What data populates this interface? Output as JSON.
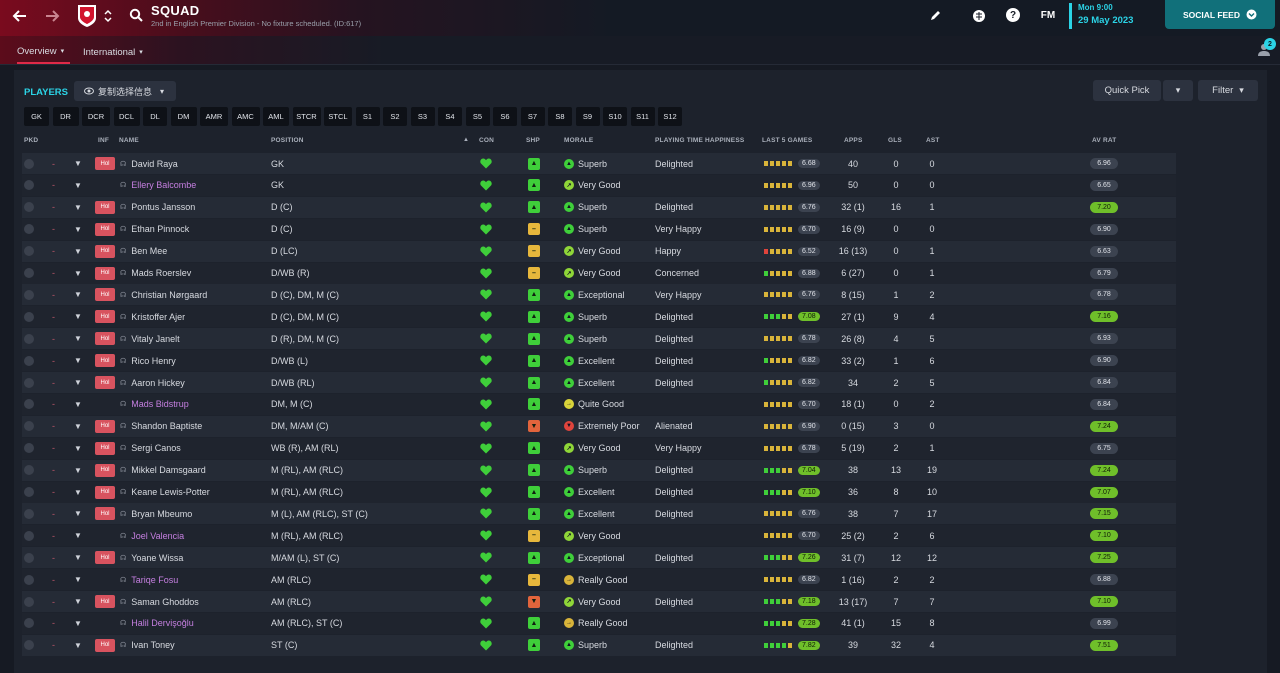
{
  "header": {
    "title": "SQUAD",
    "subtitle": "2nd in English Premier Division - No fixture scheduled. (ID:617)",
    "date_day": "Mon 9:00",
    "date": "29 May 2023",
    "social_feed": "SOCIAL FEED",
    "fm_label": "FM",
    "notification_count": "2"
  },
  "tabs": [
    {
      "label": "Overview",
      "active": true
    },
    {
      "label": "International",
      "active": false
    }
  ],
  "toolbar": {
    "players_label": "PLAYERS",
    "copy_label": "复制选择信息",
    "quick_pick": "Quick Pick",
    "filter": "Filter"
  },
  "positions": [
    "GK",
    "DR",
    "DCR",
    "DCL",
    "DL",
    "DM",
    "AMR",
    "AMC",
    "AML",
    "STCR",
    "STCL",
    "S1",
    "S2",
    "S3",
    "S4",
    "S5",
    "S6",
    "S7",
    "S8",
    "S9",
    "S10",
    "S11",
    "S12"
  ],
  "columns": {
    "pkd": "PKD",
    "inf": "INF",
    "name": "NAME",
    "position": "POSITION",
    "con": "CON",
    "shp": "SHP",
    "morale": "MORALE",
    "pth": "PLAYING TIME HAPPINESS",
    "last5": "LAST 5 GAMES",
    "apps": "APPS",
    "gls": "GLS",
    "ast": "AST",
    "avrat": "AV RAT"
  },
  "colors": {
    "accent": "#2bd3e6",
    "brand": "#c8102e",
    "green": "#6fbf2a",
    "loan": "#c57fe0"
  },
  "players": [
    {
      "name": "David Raya",
      "inf": "Hol",
      "position": "GK",
      "shp": "up",
      "morale": "Superb",
      "pth": "Delighted",
      "l5": [
        "y",
        "y",
        "y",
        "y",
        "y"
      ],
      "l5r": "6.68",
      "l5g": false,
      "apps": "40",
      "gls": "0",
      "ast": "0",
      "avr": "6.96",
      "avg": false,
      "loan": false
    },
    {
      "name": "Ellery Balcombe",
      "inf": "",
      "position": "GK",
      "shp": "up",
      "morale": "Very Good",
      "pth": "",
      "l5": [
        "y",
        "y",
        "y",
        "y",
        "y"
      ],
      "l5r": "6.96",
      "l5g": false,
      "apps": "50",
      "gls": "0",
      "ast": "0",
      "avr": "6.65",
      "avg": false,
      "loan": true
    },
    {
      "name": "Pontus Jansson",
      "inf": "Hol",
      "position": "D (C)",
      "shp": "up",
      "morale": "Superb",
      "pth": "Delighted",
      "l5": [
        "y",
        "y",
        "y",
        "y",
        "y"
      ],
      "l5r": "6.76",
      "l5g": false,
      "apps": "32 (1)",
      "gls": "16",
      "ast": "1",
      "avr": "7.20",
      "avg": true,
      "loan": false
    },
    {
      "name": "Ethan Pinnock",
      "inf": "Hol",
      "position": "D (C)",
      "shp": "mid",
      "morale": "Superb",
      "pth": "Very Happy",
      "l5": [
        "y",
        "y",
        "y",
        "y",
        "y"
      ],
      "l5r": "6.70",
      "l5g": false,
      "apps": "16 (9)",
      "gls": "0",
      "ast": "0",
      "avr": "6.90",
      "avg": false,
      "loan": false
    },
    {
      "name": "Ben Mee",
      "inf": "Hol",
      "position": "D (LC)",
      "shp": "mid",
      "morale": "Very Good",
      "pth": "Happy",
      "l5": [
        "r",
        "y",
        "y",
        "y",
        "y"
      ],
      "l5r": "6.52",
      "l5g": false,
      "apps": "16 (13)",
      "gls": "0",
      "ast": "1",
      "avr": "6.63",
      "avg": false,
      "loan": false
    },
    {
      "name": "Mads Roerslev",
      "inf": "Hol",
      "position": "D/WB (R)",
      "shp": "mid",
      "morale": "Very Good",
      "pth": "Concerned",
      "l5": [
        "g",
        "y",
        "y",
        "y",
        "y"
      ],
      "l5r": "6.88",
      "l5g": false,
      "apps": "6 (27)",
      "gls": "0",
      "ast": "1",
      "avr": "6.79",
      "avg": false,
      "loan": false
    },
    {
      "name": "Christian Nørgaard",
      "inf": "Hol",
      "position": "D (C), DM, M (C)",
      "shp": "up",
      "morale": "Exceptional",
      "pth": "Very Happy",
      "l5": [
        "y",
        "y",
        "y",
        "y",
        "y"
      ],
      "l5r": "6.76",
      "l5g": false,
      "apps": "8 (15)",
      "gls": "1",
      "ast": "2",
      "avr": "6.78",
      "avg": false,
      "loan": false
    },
    {
      "name": "Kristoffer Ajer",
      "inf": "Hol",
      "position": "D (C), DM, M (C)",
      "shp": "up",
      "morale": "Superb",
      "pth": "Delighted",
      "l5": [
        "g",
        "g",
        "g",
        "y",
        "y"
      ],
      "l5r": "7.08",
      "l5g": true,
      "apps": "27 (1)",
      "gls": "9",
      "ast": "4",
      "avr": "7.16",
      "avg": true,
      "loan": false
    },
    {
      "name": "Vitaly Janelt",
      "inf": "Hol",
      "position": "D (R), DM, M (C)",
      "shp": "up",
      "morale": "Superb",
      "pth": "Delighted",
      "l5": [
        "y",
        "y",
        "y",
        "y",
        "y"
      ],
      "l5r": "6.78",
      "l5g": false,
      "apps": "26 (8)",
      "gls": "4",
      "ast": "5",
      "avr": "6.93",
      "avg": false,
      "loan": false
    },
    {
      "name": "Rico Henry",
      "inf": "Hol",
      "position": "D/WB (L)",
      "shp": "up",
      "morale": "Excellent",
      "pth": "Delighted",
      "l5": [
        "g",
        "y",
        "y",
        "y",
        "y"
      ],
      "l5r": "6.82",
      "l5g": false,
      "apps": "33 (2)",
      "gls": "1",
      "ast": "6",
      "avr": "6.90",
      "avg": false,
      "loan": false
    },
    {
      "name": "Aaron Hickey",
      "inf": "Hol",
      "position": "D/WB (RL)",
      "shp": "up",
      "morale": "Excellent",
      "pth": "Delighted",
      "l5": [
        "g",
        "y",
        "y",
        "y",
        "y"
      ],
      "l5r": "6.82",
      "l5g": false,
      "apps": "34",
      "gls": "2",
      "ast": "5",
      "avr": "6.84",
      "avg": false,
      "loan": false
    },
    {
      "name": "Mads Bidstrup",
      "inf": "",
      "position": "DM, M (C)",
      "shp": "up",
      "morale": "Quite Good",
      "pth": "",
      "l5": [
        "y",
        "y",
        "y",
        "y",
        "y"
      ],
      "l5r": "6.70",
      "l5g": false,
      "apps": "18 (1)",
      "gls": "0",
      "ast": "2",
      "avr": "6.84",
      "avg": false,
      "loan": true
    },
    {
      "name": "Shandon Baptiste",
      "inf": "Hol",
      "position": "DM, M/AM (C)",
      "shp": "down",
      "morale": "Extremely Poor",
      "pth": "Alienated",
      "l5": [
        "y",
        "y",
        "y",
        "y",
        "y"
      ],
      "l5r": "6.90",
      "l5g": false,
      "apps": "0 (15)",
      "gls": "3",
      "ast": "0",
      "avr": "7.24",
      "avg": true,
      "loan": false
    },
    {
      "name": "Sergi Canos",
      "inf": "Hol",
      "position": "WB (R), AM (RL)",
      "shp": "up",
      "morale": "Very Good",
      "pth": "Very Happy",
      "l5": [
        "y",
        "y",
        "y",
        "y",
        "y"
      ],
      "l5r": "6.78",
      "l5g": false,
      "apps": "5 (19)",
      "gls": "2",
      "ast": "1",
      "avr": "6.75",
      "avg": false,
      "loan": false
    },
    {
      "name": "Mikkel Damsgaard",
      "inf": "Hol",
      "position": "M (RL), AM (RLC)",
      "shp": "up",
      "morale": "Superb",
      "pth": "Delighted",
      "l5": [
        "g",
        "g",
        "g",
        "y",
        "y"
      ],
      "l5r": "7.04",
      "l5g": true,
      "apps": "38",
      "gls": "13",
      "ast": "19",
      "avr": "7.24",
      "avg": true,
      "loan": false
    },
    {
      "name": "Keane Lewis-Potter",
      "inf": "Hol",
      "position": "M (RL), AM (RLC)",
      "shp": "up",
      "morale": "Excellent",
      "pth": "Delighted",
      "l5": [
        "g",
        "g",
        "g",
        "y",
        "y"
      ],
      "l5r": "7.10",
      "l5g": true,
      "apps": "36",
      "gls": "8",
      "ast": "10",
      "avr": "7.07",
      "avg": true,
      "loan": false
    },
    {
      "name": "Bryan Mbeumo",
      "inf": "Hol",
      "position": "M (L), AM (RLC), ST (C)",
      "shp": "up",
      "morale": "Excellent",
      "pth": "Delighted",
      "l5": [
        "y",
        "y",
        "y",
        "y",
        "y"
      ],
      "l5r": "6.76",
      "l5g": false,
      "apps": "38",
      "gls": "7",
      "ast": "17",
      "avr": "7.15",
      "avg": true,
      "loan": false
    },
    {
      "name": "Joel Valencia",
      "inf": "",
      "position": "M (RL), AM (RLC)",
      "shp": "mid",
      "morale": "Very Good",
      "pth": "",
      "l5": [
        "y",
        "y",
        "y",
        "y",
        "y"
      ],
      "l5r": "6.70",
      "l5g": false,
      "apps": "25 (2)",
      "gls": "2",
      "ast": "6",
      "avr": "7.10",
      "avg": true,
      "loan": true
    },
    {
      "name": "Yoane Wissa",
      "inf": "Hol",
      "position": "M/AM (L), ST (C)",
      "shp": "up",
      "morale": "Exceptional",
      "pth": "Delighted",
      "l5": [
        "g",
        "g",
        "g",
        "y",
        "y"
      ],
      "l5r": "7.26",
      "l5g": true,
      "apps": "31 (7)",
      "gls": "12",
      "ast": "12",
      "avr": "7.25",
      "avg": true,
      "loan": false
    },
    {
      "name": "Tariqe Fosu",
      "inf": "",
      "position": "AM (RLC)",
      "shp": "mid",
      "morale": "Really Good",
      "pth": "",
      "l5": [
        "y",
        "y",
        "y",
        "y",
        "y"
      ],
      "l5r": "6.82",
      "l5g": false,
      "apps": "1 (16)",
      "gls": "2",
      "ast": "2",
      "avr": "6.88",
      "avg": false,
      "loan": true
    },
    {
      "name": "Saman Ghoddos",
      "inf": "Hol",
      "position": "AM (RLC)",
      "shp": "down",
      "morale": "Very Good",
      "pth": "Delighted",
      "l5": [
        "g",
        "g",
        "g",
        "y",
        "y"
      ],
      "l5r": "7.18",
      "l5g": true,
      "apps": "13 (17)",
      "gls": "7",
      "ast": "7",
      "avr": "7.10",
      "avg": true,
      "loan": false
    },
    {
      "name": "Halil Dervişoğlu",
      "inf": "",
      "position": "AM (RLC), ST (C)",
      "shp": "up",
      "morale": "Really Good",
      "pth": "",
      "l5": [
        "g",
        "g",
        "g",
        "y",
        "y"
      ],
      "l5r": "7.28",
      "l5g": true,
      "apps": "41 (1)",
      "gls": "15",
      "ast": "8",
      "avr": "6.99",
      "avg": false,
      "loan": true
    },
    {
      "name": "Ivan Toney",
      "inf": "Hol",
      "position": "ST (C)",
      "shp": "up",
      "morale": "Superb",
      "pth": "Delighted",
      "l5": [
        "g",
        "g",
        "g",
        "g",
        "y"
      ],
      "l5r": "7.82",
      "l5g": true,
      "apps": "39",
      "gls": "32",
      "ast": "4",
      "avr": "7.51",
      "avg": true,
      "loan": false
    }
  ]
}
